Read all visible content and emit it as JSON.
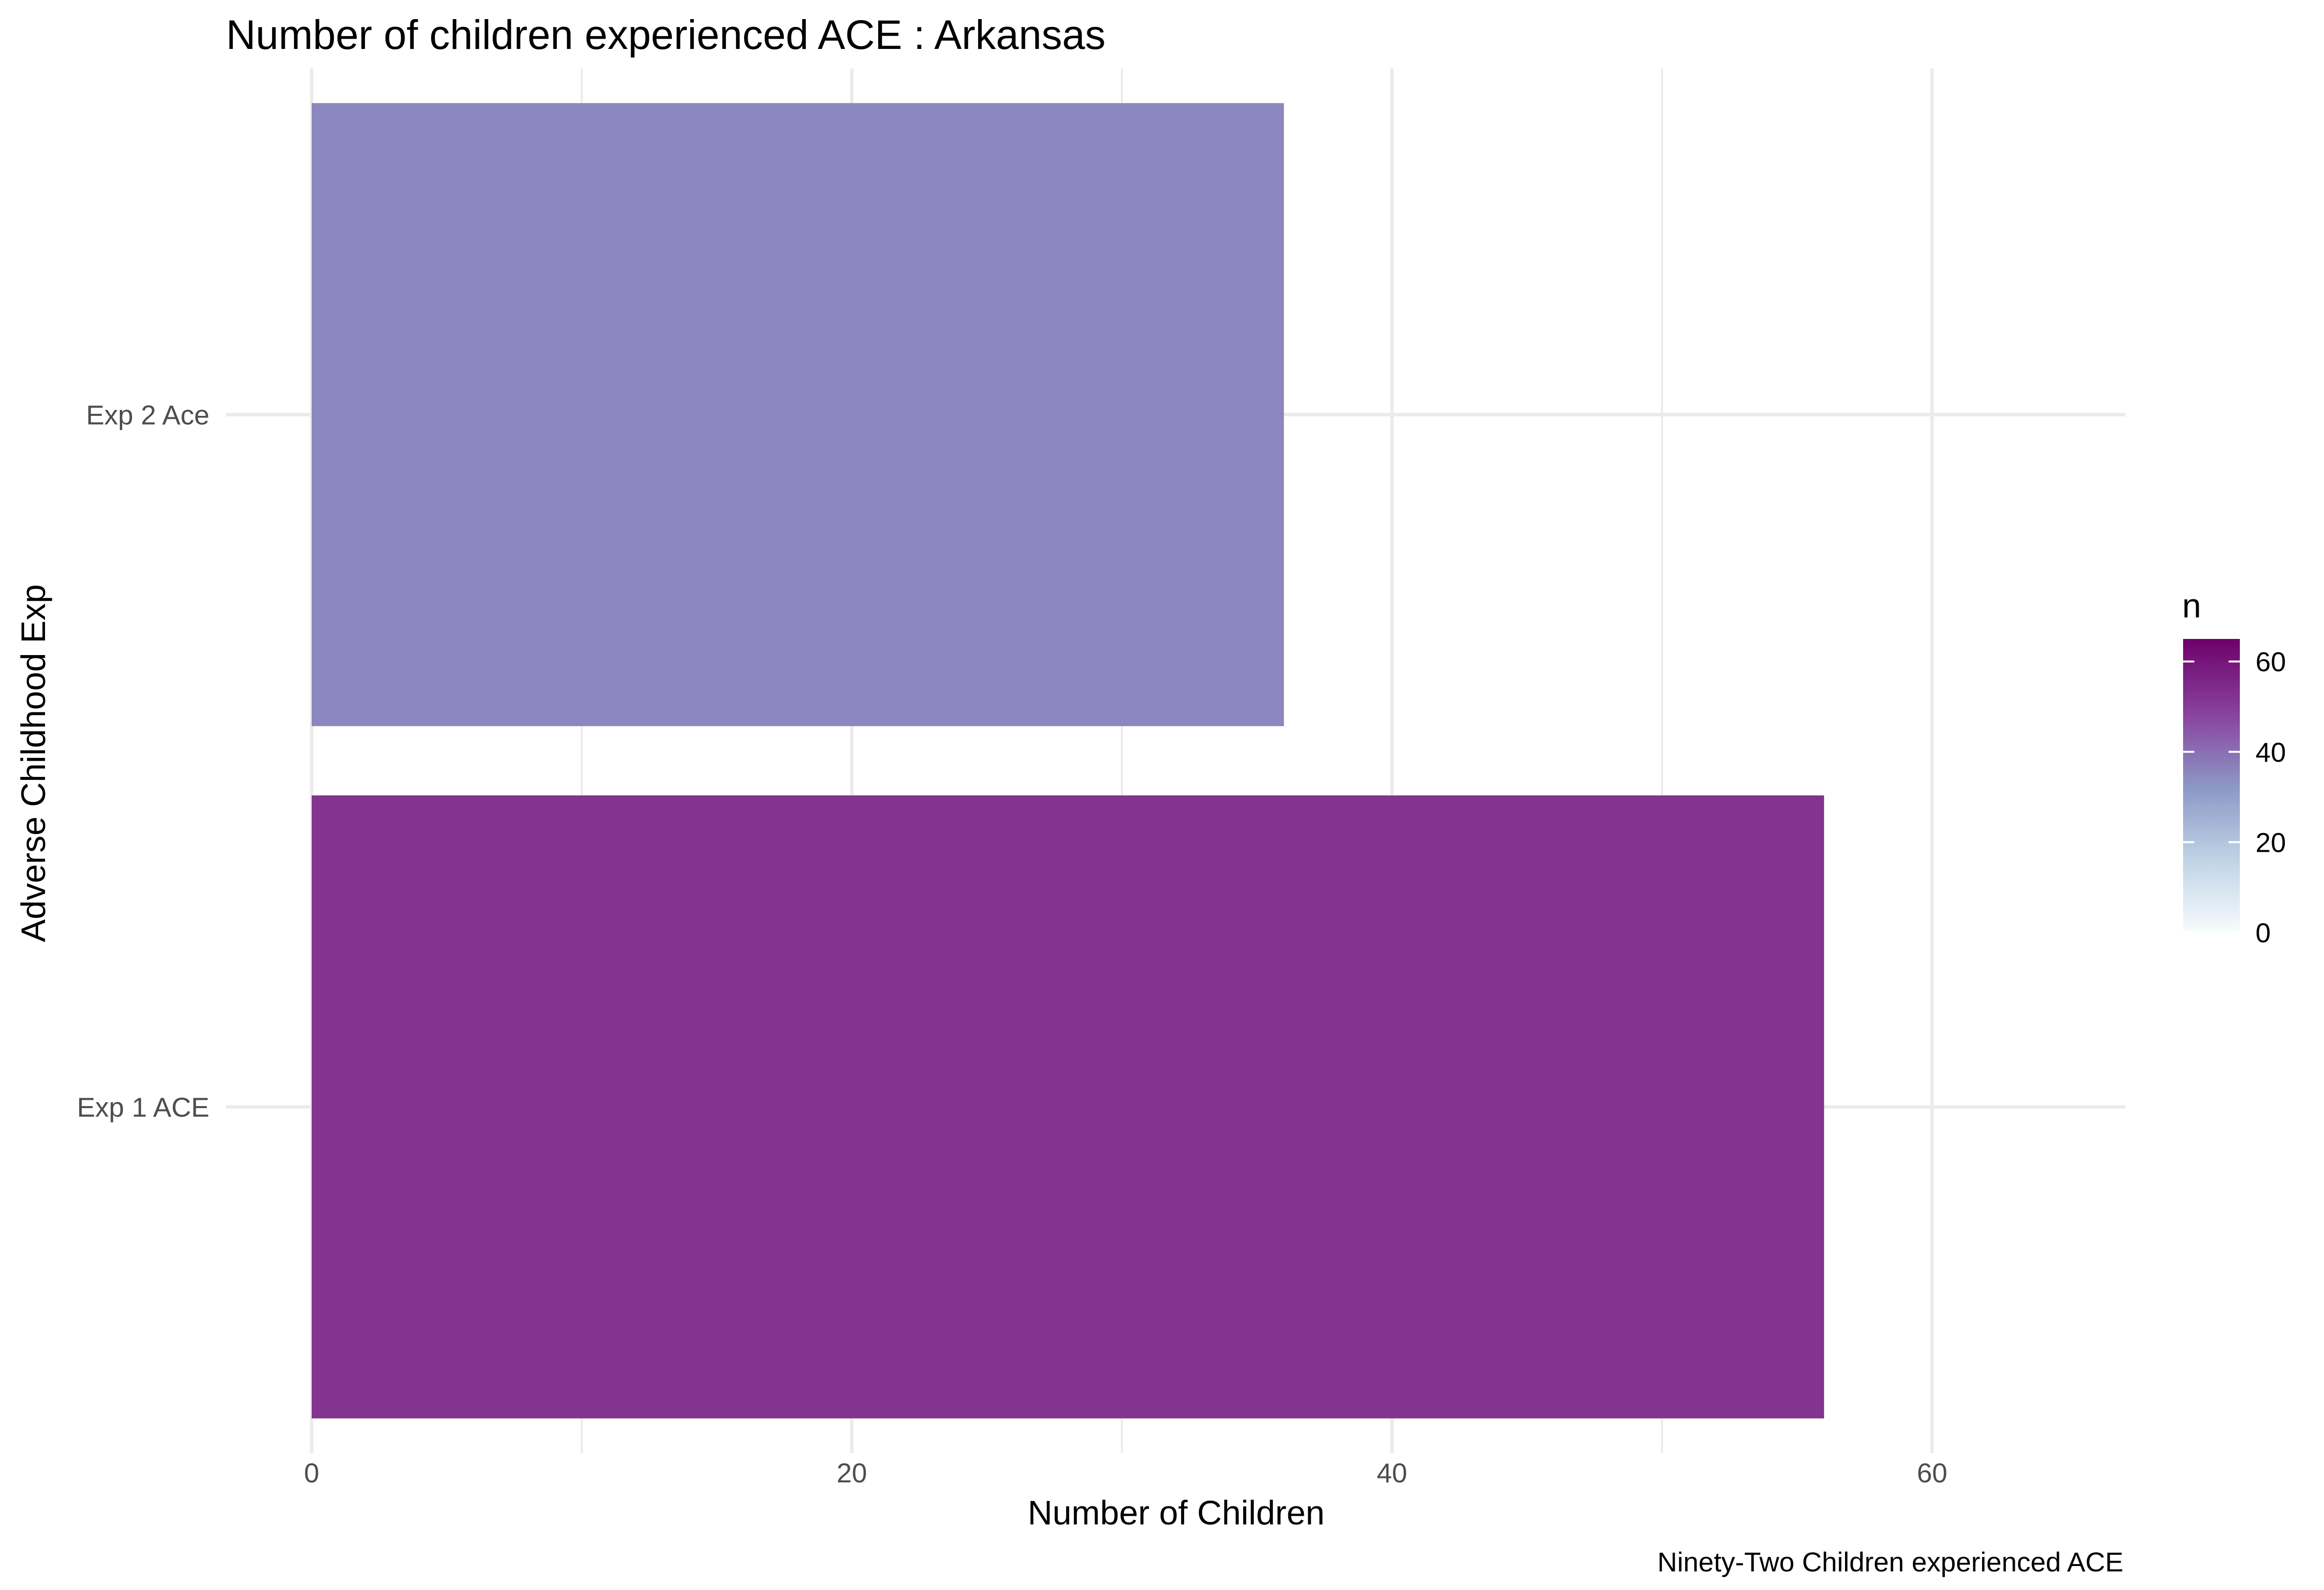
{
  "chart_data": {
    "type": "bar",
    "orientation": "horizontal",
    "title": "Number of children experienced ACE : Arkansas",
    "xlabel": "Number of Children",
    "ylabel": "Adverse Childhood Exp",
    "caption": "Ninety-Two Children experienced ACE",
    "categories": [
      "Exp 1 ACE",
      "Exp 2 Ace"
    ],
    "values": [
      56,
      36
    ],
    "xlim": [
      0,
      67.2
    ],
    "x_ticks": [
      0,
      20,
      40,
      60
    ],
    "x_tick_labels": [
      "0",
      "20",
      "40",
      "60"
    ],
    "grid": true,
    "legend": {
      "title": "n",
      "position": "right",
      "ticks": [
        0,
        20,
        40,
        60
      ],
      "tick_labels": [
        "0",
        "20",
        "40",
        "60"
      ],
      "range": [
        0,
        65
      ],
      "colors": [
        "#f7fcfd",
        "#bfd3e6",
        "#8c96c6",
        "#88419d",
        "#6e016b"
      ]
    },
    "bar_colors": [
      "#83348e",
      "#8c87be"
    ]
  }
}
